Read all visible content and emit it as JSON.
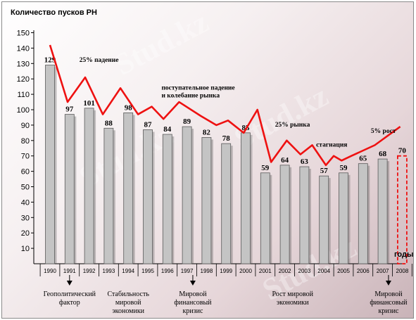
{
  "watermark": "Stud.kz",
  "chart_data": {
    "type": "bar",
    "ylabel": "Количество пусков РН",
    "xlabel": "годы",
    "ylim": [
      0,
      160
    ],
    "yticks": [
      10,
      20,
      30,
      40,
      50,
      60,
      70,
      80,
      90,
      100,
      110,
      120,
      130,
      140,
      150
    ],
    "categories": [
      "1990",
      "1991",
      "1992",
      "1993",
      "1994",
      "1995",
      "1996",
      "1997",
      "1998",
      "1999",
      "2000",
      "2001",
      "2002",
      "2003",
      "2004",
      "2005",
      "2006",
      "2007",
      "2008"
    ],
    "values": [
      129,
      97,
      101,
      88,
      98,
      87,
      84,
      89,
      82,
      78,
      85,
      59,
      64,
      63,
      57,
      59,
      65,
      68,
      70
    ],
    "forecast_index": 18,
    "trend_line": {
      "x": [
        0,
        0.9,
        1.8,
        2.7,
        3.6,
        4.5,
        5.2,
        5.8,
        6.6,
        7.7,
        8.5,
        9.1,
        9.9,
        10.6,
        11.3,
        12.1,
        12.8,
        13.4,
        14.1,
        14.5,
        14.9,
        15.4,
        16.6,
        17.9
      ],
      "y": [
        142,
        105,
        121,
        97,
        114,
        97,
        102,
        94,
        105,
        96,
        90,
        93,
        85,
        100,
        66,
        80,
        71,
        77,
        64,
        70,
        67,
        70,
        77,
        89
      ]
    },
    "annotations": [
      {
        "text": "25% падение",
        "index": 1.5,
        "value": 131
      },
      {
        "text": "поступательное падение",
        "index": 5.7,
        "value": 113
      },
      {
        "text": "и колебание рынка",
        "index": 5.7,
        "value": 108
      },
      {
        "text": "25% рынка",
        "index": 11.5,
        "value": 89
      },
      {
        "text": "стагнация",
        "index": 13.6,
        "value": 76
      },
      {
        "text": "5% рост",
        "index": 16.4,
        "value": 85
      }
    ],
    "events": [
      {
        "index": 1,
        "lines": [
          "Геополитический",
          "фактор"
        ],
        "arrow": true
      },
      {
        "index": 4,
        "lines": [
          "Стабильность",
          "мировой",
          "экономики"
        ],
        "arrow": false
      },
      {
        "index": 7.3,
        "lines": [
          "Мировой",
          "финансовый",
          "кризис"
        ],
        "arrow": true
      },
      {
        "index": 12.4,
        "lines": [
          "Рост мировой",
          "экономики"
        ],
        "arrow": false
      },
      {
        "index": 17.3,
        "lines": [
          "Мировой",
          "финансовый",
          "кризис"
        ],
        "arrow": true
      }
    ],
    "colors": {
      "bar_fill": "#c4c4c4",
      "bar_stroke": "#5a5a5a",
      "trend": "#ee1111",
      "forecast": "#ee1111",
      "axis": "#000000"
    }
  }
}
